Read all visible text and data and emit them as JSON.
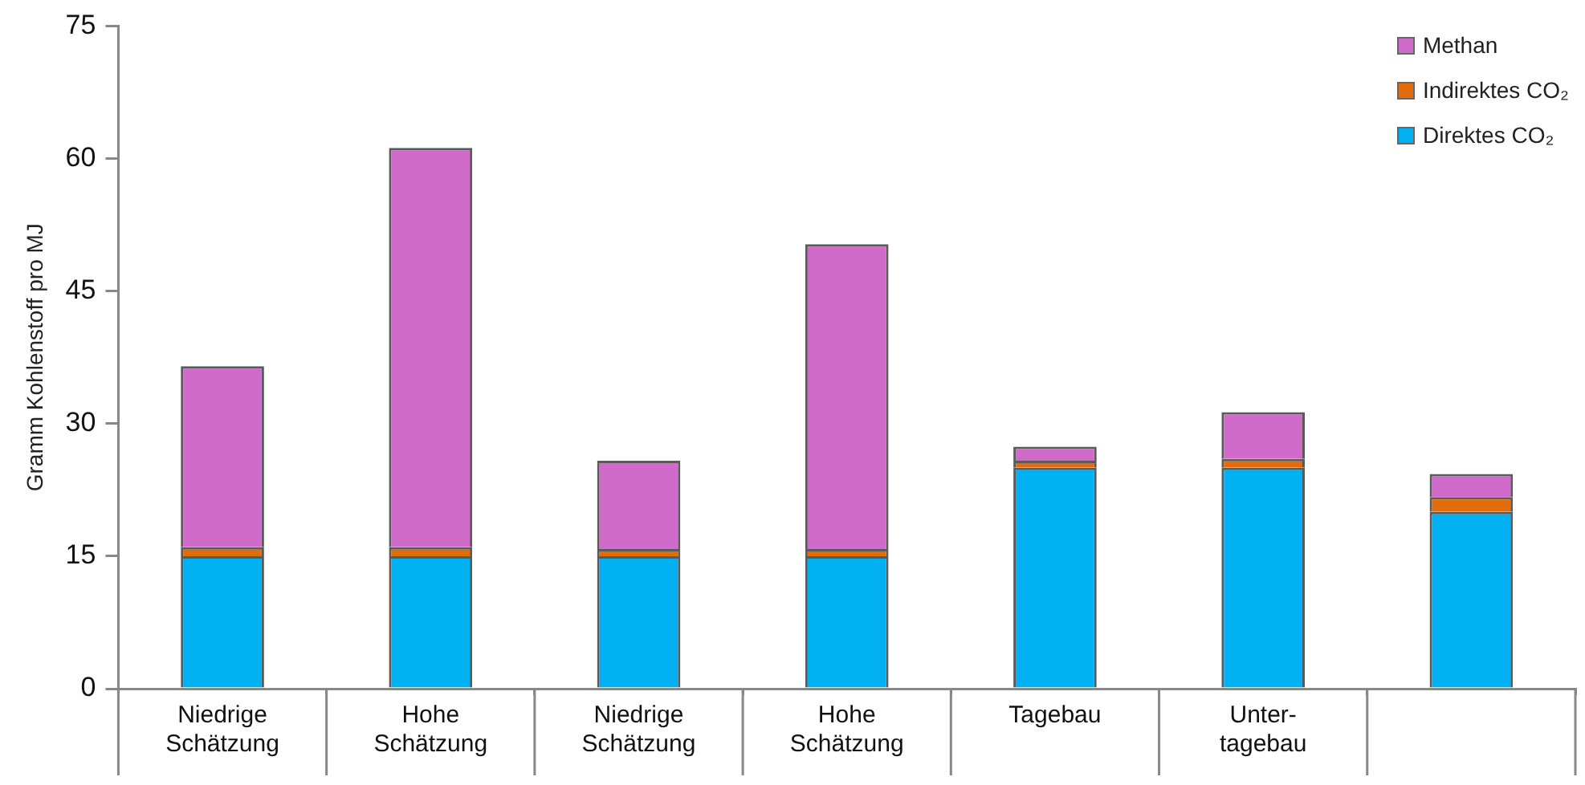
{
  "chart_data": {
    "type": "bar",
    "stacked": true,
    "ylabel": "Gramm Kohlenstoff pro MJ",
    "categories": [
      "Niedrige Schätzung",
      "Hohe Schätzung",
      "Niedrige Schätzung",
      "Hohe Schätzung",
      "Tagebau",
      "Unter-tagebau",
      null
    ],
    "series": [
      {
        "name": "Direktes CO₂",
        "color": "#00b0f0",
        "values": [
          15,
          15,
          15,
          15,
          25,
          25,
          20
        ]
      },
      {
        "name": "Indirektes CO₂",
        "color": "#e36c0a",
        "values": [
          1,
          1,
          0.8,
          0.8,
          0.8,
          1,
          1.7
        ]
      },
      {
        "name": "Methan",
        "color": "#d16bc9",
        "values": [
          20.5,
          45.2,
          10,
          34.5,
          1.6,
          5.3,
          2.6
        ]
      }
    ],
    "ylim": [
      0,
      75
    ],
    "yticks": [
      0,
      15,
      30,
      45,
      60,
      75
    ],
    "grid": false,
    "legend": "top right"
  }
}
